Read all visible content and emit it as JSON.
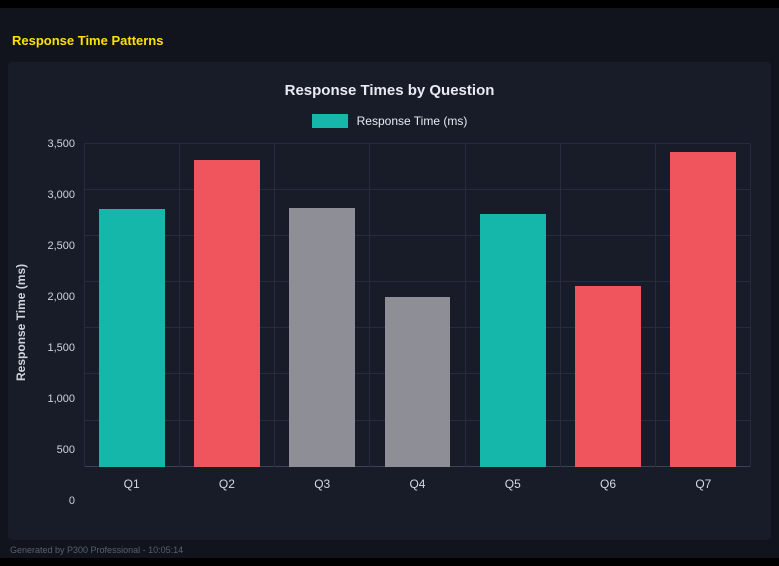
{
  "page": {
    "heading": "Response Time Patterns",
    "footer": "Generated by P300 Professional - 10:05:14"
  },
  "colors": {
    "heading_accent": "#ffe000",
    "card_background": "#171c28",
    "page_background": "#11141d",
    "grid": "#272c3a"
  },
  "chart_data": {
    "type": "bar",
    "title": "Response Times by Question",
    "legend_label": "Response Time (ms)",
    "legend_position": "top",
    "ylabel": "Response Time (ms)",
    "xlabel": "",
    "categories": [
      "Q1",
      "Q2",
      "Q3",
      "Q4",
      "Q5",
      "Q6",
      "Q7"
    ],
    "values": [
      2800,
      3330,
      2810,
      1845,
      2740,
      1960,
      3410
    ],
    "bar_colors": [
      "teal",
      "red",
      "gray",
      "gray",
      "teal",
      "red",
      "red"
    ],
    "palette": {
      "teal": "#15b7ab",
      "red": "#f0545c",
      "gray": "#8e8e96"
    },
    "ylim": [
      0,
      3500
    ],
    "ytick_labels": [
      "0",
      "500",
      "1,000",
      "1,500",
      "2,000",
      "2,500",
      "3,000",
      "3,500"
    ],
    "grid": true
  }
}
